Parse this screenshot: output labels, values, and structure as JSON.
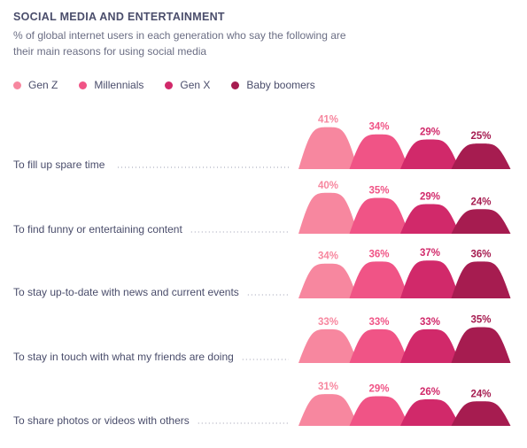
{
  "title": "SOCIAL MEDIA AND ENTERTAINMENT",
  "subtitle": "% of global internet users in each generation who say the following are their main reasons for using social media",
  "legend": [
    {
      "label": "Gen Z",
      "color": "#f7879f"
    },
    {
      "label": "Millennials",
      "color": "#f05486"
    },
    {
      "label": "Gen X",
      "color": "#d1296a"
    },
    {
      "label": "Baby boomers",
      "color": "#a61c50"
    }
  ],
  "chart_data": {
    "type": "bar",
    "title": "SOCIAL MEDIA AND ENTERTAINMENT",
    "subtitle": "% of global internet users in each generation who say the following are their main reasons for using social media",
    "categories": [
      "To fill up spare time",
      "To find funny or entertaining content",
      "To stay up-to-date with news and current events",
      "To stay in touch with what my friends are doing",
      "To share photos or videos with others"
    ],
    "series": [
      {
        "name": "Gen Z",
        "color": "#f7879f",
        "values": [
          41,
          40,
          34,
          33,
          31
        ]
      },
      {
        "name": "Millennials",
        "color": "#f05486",
        "values": [
          34,
          35,
          36,
          33,
          29
        ]
      },
      {
        "name": "Gen X",
        "color": "#d1296a",
        "values": [
          29,
          29,
          37,
          33,
          26
        ]
      },
      {
        "name": "Baby boomers",
        "color": "#a61c50",
        "values": [
          25,
          24,
          36,
          35,
          24
        ]
      }
    ],
    "value_suffix": "%",
    "ylim": [
      0,
      45
    ],
    "grid": false,
    "legend_position": "top-left"
  }
}
